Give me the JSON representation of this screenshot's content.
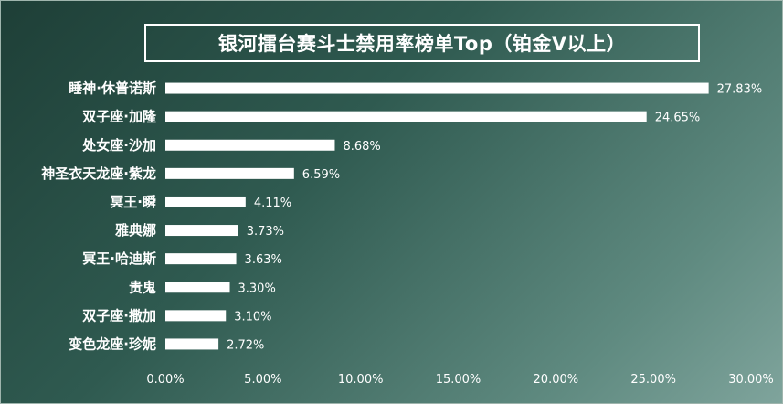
{
  "title": "银河擂台赛斗士禁用率榜单Top（铂金V以上）",
  "colors": {
    "bar": "#ffffff",
    "text": "#ffffff",
    "background_start": "#1e3f37",
    "background_end": "#7fa49c"
  },
  "chart_data": {
    "type": "bar",
    "orientation": "horizontal",
    "title": "银河擂台赛斗士禁用率榜单Top（铂金V以上）",
    "xlabel": "",
    "ylabel": "",
    "xlim": [
      0,
      30
    ],
    "x_ticks": [
      "0.00%",
      "5.00%",
      "10.00%",
      "15.00%",
      "20.00%",
      "25.00%",
      "30.00%"
    ],
    "grid": false,
    "categories": [
      "睡神·休普诺斯",
      "双子座·加隆",
      "处女座·沙加",
      "神圣衣天龙座·紫龙",
      "冥王·瞬",
      "雅典娜",
      "冥王·哈迪斯",
      "贵鬼",
      "双子座·撒加",
      "变色龙座·珍妮"
    ],
    "values": [
      27.83,
      24.65,
      8.68,
      6.59,
      4.11,
      3.73,
      3.63,
      3.3,
      3.1,
      2.72
    ],
    "value_labels": [
      "27.83%",
      "24.65%",
      "8.68%",
      "6.59%",
      "4.11%",
      "3.73%",
      "3.63%",
      "3.30%",
      "3.10%",
      "2.72%"
    ]
  }
}
